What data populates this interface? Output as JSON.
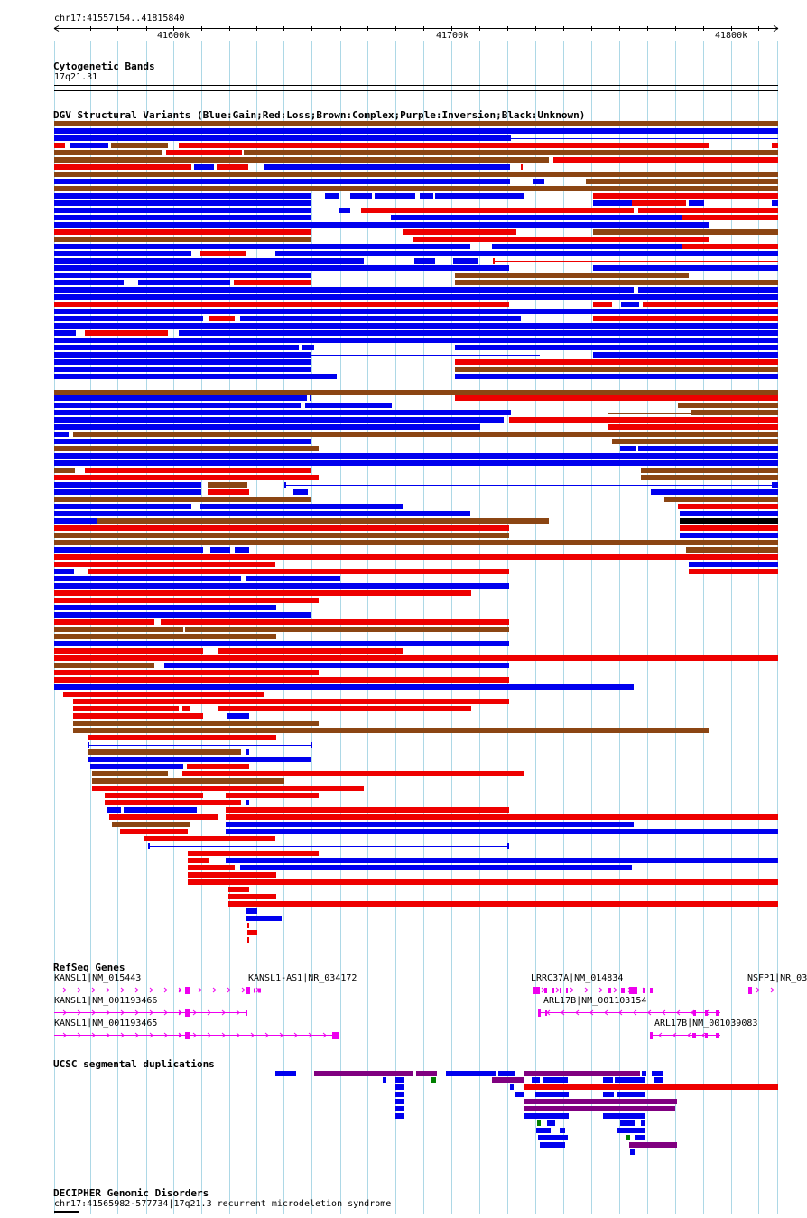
{
  "locus": "chr17:41557154..41815840",
  "ruler": {
    "start": 41557154,
    "end": 41815840,
    "ticks": [
      "41600k",
      "41700k",
      "41800k"
    ]
  },
  "colors": {
    "gain": "#0000ee",
    "loss": "#ee0000",
    "complex": "#8b4513",
    "inversion": "#800080",
    "unknown": "#000000",
    "gene": "#ee00ee",
    "grid": "#add8e6",
    "segdup_green": "#008000"
  },
  "tracks": {
    "cyto": {
      "title": "Cytogenetic Bands",
      "band": "17q21.31"
    },
    "dgv": {
      "title": "DGV Structural Variants (Blue:Gain;Red:Loss;Brown:Complex;Purple:Inversion;Black:Unknown)"
    },
    "refseq": {
      "title": "RefSeq Genes"
    },
    "segdup": {
      "title": "UCSC segmental duplications"
    },
    "decipher": {
      "title": "DECIPHER Genomic Disorders",
      "item": "chr17:41565982-577734|17q21.3 recurrent microdeletion syndrome"
    }
  },
  "genes": [
    {
      "label": "KANSL1|NM_015443"
    },
    {
      "label": "KANSL1-AS1|NR_034172"
    },
    {
      "label": "LRRC37A|NM_014834"
    },
    {
      "label": "NSFP1|NR_03"
    },
    {
      "label": "KANSL1|NM_001193466"
    },
    {
      "label": "ARL17B|NM_001103154"
    },
    {
      "label": "KANSL1|NM_001193465"
    },
    {
      "label": "ARL17B|NM_001039083"
    }
  ]
}
